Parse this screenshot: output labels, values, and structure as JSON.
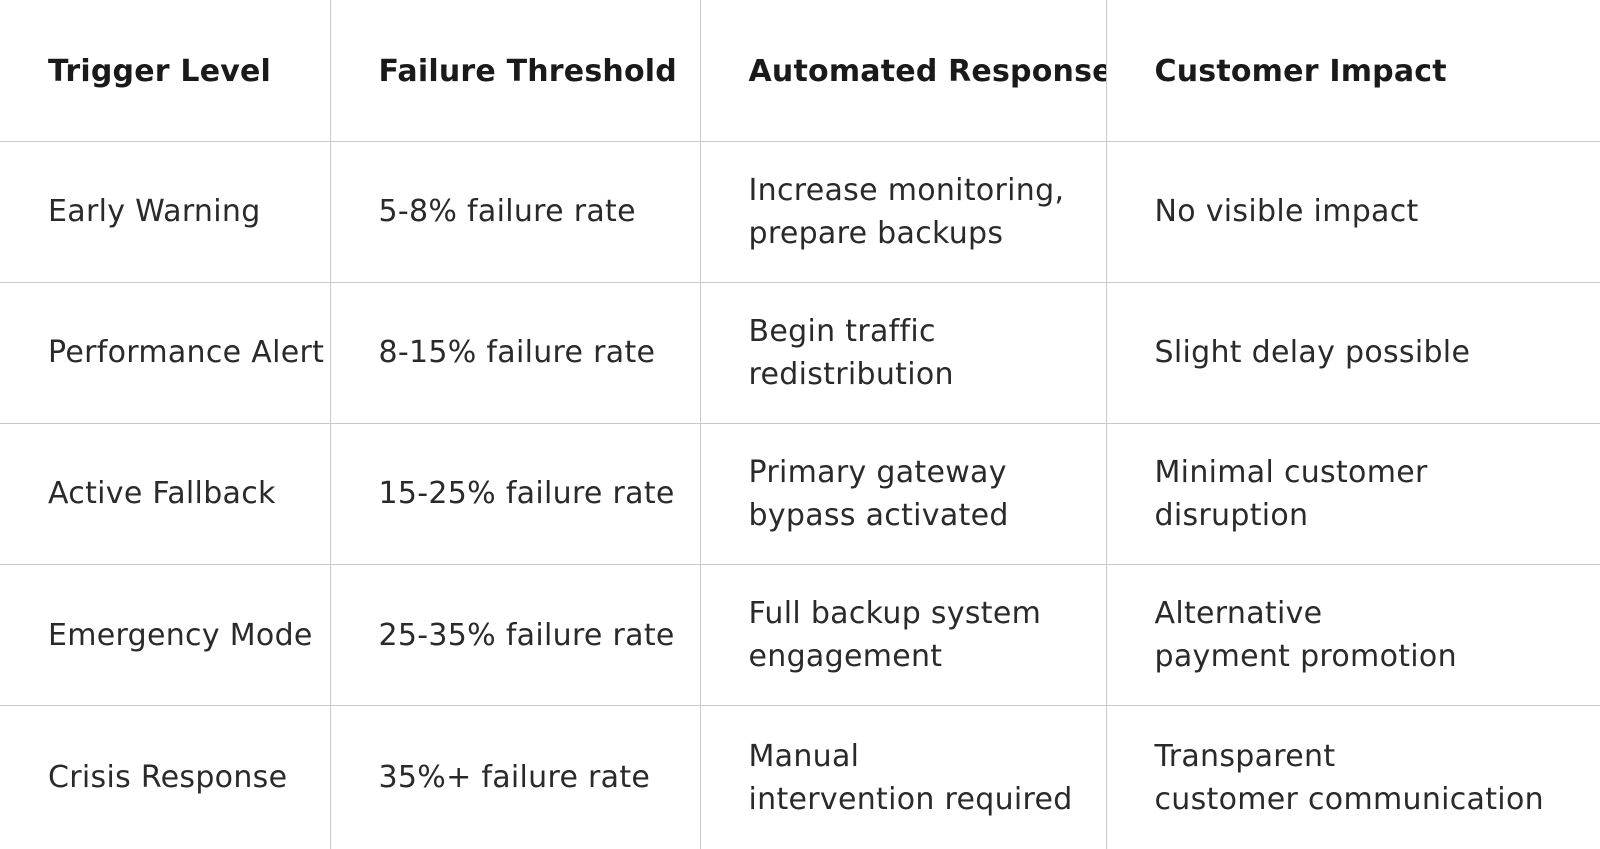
{
  "table": {
    "headers": [
      "Trigger Level",
      "Failure Threshold",
      "Automated Response",
      "Customer Impact"
    ],
    "rows": [
      {
        "trigger": "Early Warning",
        "threshold": "5-8% failure rate",
        "response": [
          "Increase monitoring,",
          "prepare backups"
        ],
        "impact": [
          "No visible impact"
        ]
      },
      {
        "trigger": "Performance Alert",
        "threshold": "8-15% failure rate",
        "response": [
          "Begin traffic",
          "redistribution"
        ],
        "impact": [
          "Slight delay possible"
        ]
      },
      {
        "trigger": "Active Fallback",
        "threshold": "15-25% failure rate",
        "response": [
          "Primary gateway",
          "bypass activated"
        ],
        "impact": [
          "Minimal customer",
          "disruption"
        ]
      },
      {
        "trigger": "Emergency Mode",
        "threshold": "25-35% failure rate",
        "response": [
          "Full backup system",
          "engagement"
        ],
        "impact": [
          "Alternative",
          "payment promotion"
        ]
      },
      {
        "trigger": "Crisis Response",
        "threshold": "35%+ failure rate",
        "response": [
          "Manual",
          "intervention required"
        ],
        "impact": [
          "Transparent",
          "customer communication"
        ]
      }
    ]
  }
}
